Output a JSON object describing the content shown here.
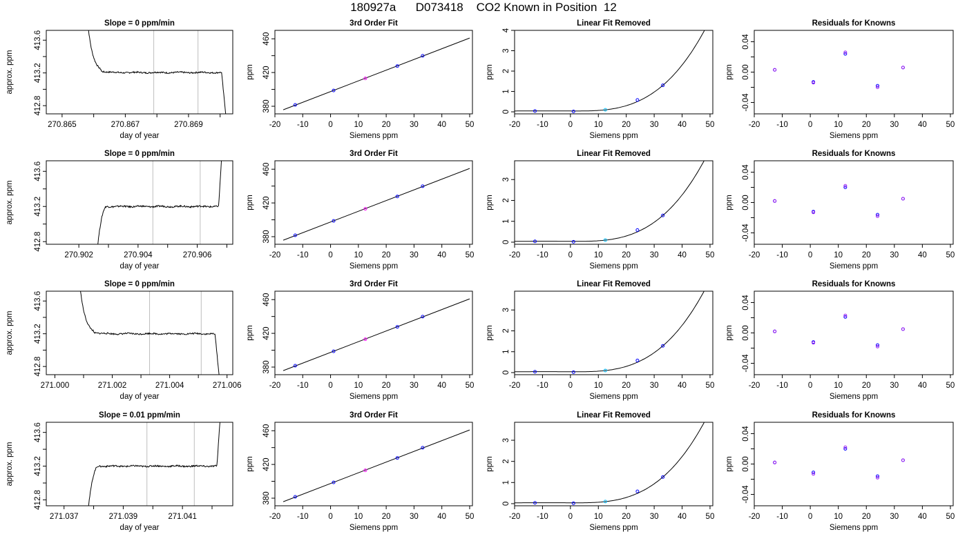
{
  "page": {
    "title": "180927a      D073418    CO2 Known in Position  12"
  },
  "colors": {
    "line": "#000000",
    "window_lines": "#bebebe",
    "point_outline": "#0000ff",
    "point_outline_alt": "#a020f0",
    "point_mid": "#ff00ff",
    "point_light": "#00bfff"
  },
  "chart_data": [
    {
      "type": "line",
      "row": 0,
      "col": 0,
      "title": "Slope =  0  ppm/min",
      "xlabel": "day of year",
      "ylabel": "approx. ppm",
      "xlim": [
        270.8645,
        270.8704
      ],
      "ylim": [
        412.7,
        413.72
      ],
      "xticks": [
        270.865,
        270.866,
        270.867,
        270.868,
        270.869,
        270.87
      ],
      "xtick_labels": [
        "270.865",
        "",
        "270.867",
        "",
        "270.869",
        ""
      ],
      "yticks": [
        412.8,
        413.0,
        413.2,
        413.4,
        413.6
      ],
      "ytick_labels": [
        "412.8",
        "",
        "413.2",
        "",
        "413.6"
      ],
      "window": [
        270.8679,
        270.8693
      ],
      "shape": "down",
      "t0": 270.86575,
      "t1": 270.8702,
      "level": 413.205
    },
    {
      "type": "line",
      "row": 1,
      "col": 0,
      "title": "Slope =  0  ppm/min",
      "xlabel": "day of year",
      "ylabel": "approx. ppm",
      "xlim": [
        270.9009,
        270.9072
      ],
      "ylim": [
        412.77,
        413.72
      ],
      "xticks": [
        270.902,
        270.903,
        270.904,
        270.905,
        270.906,
        270.907
      ],
      "xtick_labels": [
        "270.902",
        "",
        "270.904",
        "",
        "270.906",
        ""
      ],
      "yticks": [
        412.8,
        413.0,
        413.2,
        413.4,
        413.6
      ],
      "ytick_labels": [
        "412.8",
        "",
        "413.2",
        "",
        "413.6"
      ],
      "window": [
        270.9045,
        270.9061
      ],
      "shape": "up",
      "t0": 270.9026,
      "t1": 270.90685,
      "level": 413.2
    },
    {
      "type": "line",
      "row": 2,
      "col": 0,
      "title": "Slope =  0  ppm/min",
      "xlabel": "day of year",
      "ylabel": "approx. ppm",
      "xlim": [
        270.9997,
        271.0062
      ],
      "ylim": [
        412.7,
        413.72
      ],
      "xticks": [
        271.0,
        271.001,
        271.002,
        271.003,
        271.004,
        271.005,
        271.006
      ],
      "xtick_labels": [
        "271.000",
        "",
        "271.002",
        "",
        "271.004",
        "",
        "271.006"
      ],
      "yticks": [
        412.8,
        413.0,
        413.2,
        413.4,
        413.6
      ],
      "ytick_labels": [
        "412.8",
        "",
        "413.2",
        "",
        "413.6"
      ],
      "window": [
        271.0033,
        271.0051
      ],
      "shape": "down",
      "t0": 271.0008,
      "t1": 271.00575,
      "level": 413.2
    },
    {
      "type": "line",
      "row": 3,
      "col": 0,
      "title": "Slope =  0.01  ppm/min",
      "xlabel": "day of year",
      "ylabel": "approx. ppm",
      "xlim": [
        271.0364,
        271.0427
      ],
      "ylim": [
        412.73,
        413.72
      ],
      "xticks": [
        271.037,
        271.038,
        271.039,
        271.04,
        271.041,
        271.042
      ],
      "xtick_labels": [
        "271.037",
        "",
        "271.039",
        "",
        "271.041",
        ""
      ],
      "yticks": [
        412.8,
        413.0,
        413.2,
        413.4,
        413.6
      ],
      "ytick_labels": [
        "412.8",
        "",
        "413.2",
        "",
        "413.6"
      ],
      "window": [
        271.0398,
        271.0414
      ],
      "shape": "up",
      "t0": 271.0378,
      "t1": 271.0423,
      "level": 413.2
    },
    {
      "type": "scatter",
      "row": 0,
      "col": 1,
      "title": "3rd Order Fit",
      "xlabel": "Siemens ppm",
      "ylabel": "ppm",
      "xlim": [
        -20,
        51
      ],
      "ylim": [
        371,
        470
      ],
      "xticks": [
        -20,
        -10,
        0,
        10,
        20,
        30,
        40,
        50
      ],
      "yticks": [
        380,
        400,
        420,
        440,
        460
      ],
      "ytick_labels": [
        "380",
        "",
        "420",
        "",
        "460"
      ],
      "x": [
        -12.7,
        1.1,
        12.5,
        24.0,
        33.1
      ],
      "y": [
        381.6,
        398.7,
        413.0,
        427.7,
        439.8
      ],
      "fit_intercept": 397.4,
      "fit_slope": 1.27,
      "fit_range": [
        -17,
        50
      ]
    },
    {
      "type": "scatter",
      "row": 1,
      "col": 1,
      "title": "3rd Order Fit",
      "xlabel": "Siemens ppm",
      "ylabel": "ppm",
      "xlim": [
        -20,
        51
      ],
      "ylim": [
        371,
        470
      ],
      "xticks": [
        -20,
        -10,
        0,
        10,
        20,
        30,
        40,
        50
      ],
      "yticks": [
        380,
        400,
        420,
        440,
        460
      ],
      "ytick_labels": [
        "380",
        "",
        "420",
        "",
        "460"
      ],
      "x": [
        -12.7,
        1.1,
        12.5,
        24.0,
        33.1
      ],
      "y": [
        381.6,
        398.7,
        413.0,
        427.7,
        439.8
      ],
      "fit_intercept": 397.4,
      "fit_slope": 1.27,
      "fit_range": [
        -17,
        50
      ]
    },
    {
      "type": "scatter",
      "row": 2,
      "col": 1,
      "title": "3rd Order Fit",
      "xlabel": "Siemens ppm",
      "ylabel": "ppm",
      "xlim": [
        -20,
        51
      ],
      "ylim": [
        371,
        470
      ],
      "xticks": [
        -20,
        -10,
        0,
        10,
        20,
        30,
        40,
        50
      ],
      "yticks": [
        380,
        400,
        420,
        440,
        460
      ],
      "ytick_labels": [
        "380",
        "",
        "420",
        "",
        "460"
      ],
      "x": [
        -12.7,
        1.1,
        12.5,
        24.0,
        33.1
      ],
      "y": [
        381.6,
        398.7,
        413.0,
        427.7,
        439.8
      ],
      "fit_intercept": 397.4,
      "fit_slope": 1.27,
      "fit_range": [
        -17,
        50
      ]
    },
    {
      "type": "scatter",
      "row": 3,
      "col": 1,
      "title": "3rd Order Fit",
      "xlabel": "Siemens ppm",
      "ylabel": "ppm",
      "xlim": [
        -20,
        51
      ],
      "ylim": [
        371,
        470
      ],
      "xticks": [
        -20,
        -10,
        0,
        10,
        20,
        30,
        40,
        50
      ],
      "yticks": [
        380,
        400,
        420,
        440,
        460
      ],
      "ytick_labels": [
        "380",
        "",
        "420",
        "",
        "460"
      ],
      "x": [
        -12.7,
        1.1,
        12.5,
        24.0,
        33.1
      ],
      "y": [
        381.6,
        398.7,
        413.0,
        427.7,
        439.8
      ],
      "fit_intercept": 397.4,
      "fit_slope": 1.27,
      "fit_range": [
        -17,
        50
      ]
    },
    {
      "type": "scatter",
      "row": 0,
      "col": 2,
      "title": "Linear Fit Removed",
      "xlabel": "Siemens ppm",
      "ylabel": "ppm",
      "xlim": [
        -20,
        51
      ],
      "ylim": [
        -0.1,
        4.0
      ],
      "xticks": [
        -20,
        -10,
        0,
        10,
        20,
        30,
        40,
        50
      ],
      "yticks": [
        0,
        1,
        2,
        3,
        4
      ],
      "x": [
        -12.7,
        1.1,
        12.5,
        24.0,
        33.1
      ],
      "y": [
        0.04,
        0.02,
        0.1,
        0.58,
        1.3
      ],
      "cubic": [
        -0.000102,
        3e-06,
        0.01315,
        0.04
      ],
      "curve_range": [
        -20,
        50
      ]
    },
    {
      "type": "scatter",
      "row": 1,
      "col": 2,
      "title": "Linear Fit Removed",
      "xlabel": "Siemens ppm",
      "ylabel": "ppm",
      "xlim": [
        -20,
        51
      ],
      "ylim": [
        -0.1,
        3.9
      ],
      "xticks": [
        -20,
        -10,
        0,
        10,
        20,
        30,
        40,
        50
      ],
      "yticks": [
        0,
        1,
        2,
        3
      ],
      "x": [
        -12.7,
        1.1,
        12.5,
        24.0,
        33.1
      ],
      "y": [
        0.04,
        0.02,
        0.1,
        0.58,
        1.28
      ],
      "cubic": [
        -9.4e-05,
        3e-06,
        0.01315,
        0.04
      ],
      "curve_range": [
        -20,
        50
      ]
    },
    {
      "type": "scatter",
      "row": 2,
      "col": 2,
      "title": "Linear Fit Removed",
      "xlabel": "Siemens ppm",
      "ylabel": "ppm",
      "xlim": [
        -20,
        51
      ],
      "ylim": [
        -0.1,
        3.9
      ],
      "xticks": [
        -20,
        -10,
        0,
        10,
        20,
        30,
        40,
        50
      ],
      "yticks": [
        0,
        1,
        2,
        3
      ],
      "x": [
        -12.7,
        1.1,
        12.5,
        24.0,
        33.1
      ],
      "y": [
        0.04,
        0.02,
        0.1,
        0.58,
        1.28
      ],
      "cubic": [
        -9.4e-05,
        3e-06,
        0.01315,
        0.04
      ],
      "curve_range": [
        -20,
        50
      ]
    },
    {
      "type": "scatter",
      "row": 3,
      "col": 2,
      "title": "Linear Fit Removed",
      "xlabel": "Siemens ppm",
      "ylabel": "ppm",
      "xlim": [
        -20,
        51
      ],
      "ylim": [
        -0.1,
        3.85
      ],
      "xticks": [
        -20,
        -10,
        0,
        10,
        20,
        30,
        40,
        50
      ],
      "yticks": [
        0,
        1,
        2,
        3
      ],
      "x": [
        -12.7,
        1.1,
        12.5,
        24.0,
        33.1
      ],
      "y": [
        0.04,
        0.02,
        0.1,
        0.58,
        1.26
      ],
      "cubic": [
        -9.2e-05,
        3e-06,
        0.01315,
        0.04
      ],
      "curve_range": [
        -20,
        50
      ]
    },
    {
      "type": "scatter",
      "row": 0,
      "col": 3,
      "title": "Residuals for Knowns",
      "xlabel": "Siemens ppm",
      "ylabel": "ppm",
      "xlim": [
        -20,
        51
      ],
      "ylim": [
        -0.055,
        0.055
      ],
      "xticks": [
        -20,
        -10,
        0,
        10,
        20,
        30,
        40,
        50
      ],
      "yticks": [
        -0.04,
        -0.02,
        0.0,
        0.02,
        0.04
      ],
      "ytick_labels": [
        "-0.04",
        "",
        "0.00",
        "",
        "0.04"
      ],
      "x": [
        -12.7,
        1.1,
        12.5,
        24.0,
        33.1
      ],
      "y": [
        0.003,
        -0.013,
        0.024,
        -0.018,
        0.006
      ],
      "y_alt": [
        0.003,
        -0.014,
        0.026,
        -0.02,
        0.006
      ]
    },
    {
      "type": "scatter",
      "row": 1,
      "col": 3,
      "title": "Residuals for Knowns",
      "xlabel": "Siemens ppm",
      "ylabel": "ppm",
      "xlim": [
        -20,
        51
      ],
      "ylim": [
        -0.055,
        0.055
      ],
      "xticks": [
        -20,
        -10,
        0,
        10,
        20,
        30,
        40,
        50
      ],
      "yticks": [
        -0.04,
        -0.02,
        0.0,
        0.02,
        0.04
      ],
      "ytick_labels": [
        "-0.04",
        "",
        "0.00",
        "",
        "0.04"
      ],
      "x": [
        -12.7,
        1.1,
        12.5,
        24.0,
        33.1
      ],
      "y": [
        0.002,
        -0.012,
        0.02,
        -0.016,
        0.005
      ],
      "y_alt": [
        0.002,
        -0.013,
        0.022,
        -0.018,
        0.005
      ]
    },
    {
      "type": "scatter",
      "row": 2,
      "col": 3,
      "title": "Residuals for Knowns",
      "xlabel": "Siemens ppm",
      "ylabel": "ppm",
      "xlim": [
        -20,
        51
      ],
      "ylim": [
        -0.055,
        0.055
      ],
      "xticks": [
        -20,
        -10,
        0,
        10,
        20,
        30,
        40,
        50
      ],
      "yticks": [
        -0.04,
        -0.02,
        0.0,
        0.02,
        0.04
      ],
      "ytick_labels": [
        "-0.04",
        "",
        "0.00",
        "",
        "0.04"
      ],
      "x": [
        -12.7,
        1.1,
        12.5,
        24.0,
        33.1
      ],
      "y": [
        0.002,
        -0.012,
        0.021,
        -0.016,
        0.005
      ],
      "y_alt": [
        0.002,
        -0.013,
        0.023,
        -0.018,
        0.005
      ]
    },
    {
      "type": "scatter",
      "row": 3,
      "col": 3,
      "title": "Residuals for Knowns",
      "xlabel": "Siemens ppm",
      "ylabel": "ppm",
      "xlim": [
        -20,
        51
      ],
      "ylim": [
        -0.055,
        0.055
      ],
      "xticks": [
        -20,
        -10,
        0,
        10,
        20,
        30,
        40,
        50
      ],
      "yticks": [
        -0.04,
        -0.02,
        0.0,
        0.02,
        0.04
      ],
      "ytick_labels": [
        "-0.04",
        "",
        "0.00",
        "",
        "0.04"
      ],
      "x": [
        -12.7,
        1.1,
        12.5,
        24.0,
        33.1
      ],
      "y": [
        0.002,
        -0.011,
        0.02,
        -0.016,
        0.005
      ],
      "y_alt": [
        0.002,
        -0.013,
        0.022,
        -0.018,
        0.005
      ]
    }
  ]
}
